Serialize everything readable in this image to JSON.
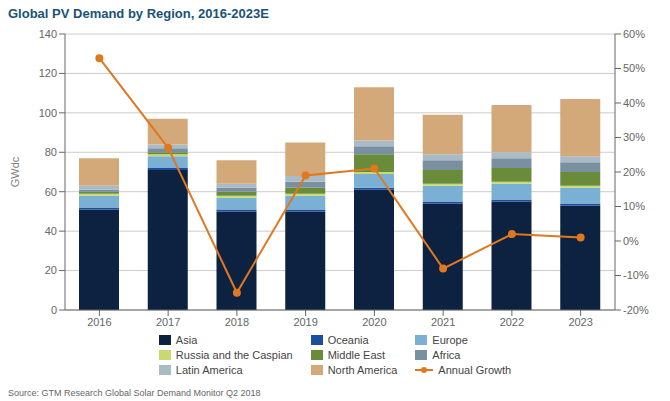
{
  "chart_data": {
    "type": "bar",
    "title": "Global PV Demand by Region, 2016-2023E",
    "ylabel": "GWdc",
    "annotations": [
      "Source: GTM Research Global Solar Demand Monitor Q2 2018"
    ],
    "categories": [
      "2016",
      "2017",
      "2018",
      "2019",
      "2020",
      "2021",
      "2022",
      "2023"
    ],
    "stacked": true,
    "grid": true,
    "legend": "bottom",
    "ylim": [
      0,
      140
    ],
    "yticks": [
      0,
      20,
      40,
      60,
      80,
      100,
      120,
      140
    ],
    "y2lim": [
      -20,
      60
    ],
    "y2ticks": [
      {
        "value": -20,
        "label": "-20%"
      },
      {
        "value": -10,
        "label": "-10%"
      },
      {
        "value": 0,
        "label": "0%"
      },
      {
        "value": 10,
        "label": "10%"
      },
      {
        "value": 20,
        "label": "20%"
      },
      {
        "value": 30,
        "label": "30%"
      },
      {
        "value": 40,
        "label": "40%"
      },
      {
        "value": 50,
        "label": "50%"
      },
      {
        "value": 60,
        "label": "60%"
      }
    ],
    "series": [
      {
        "name": "Asia",
        "type": "bar",
        "color": "#0d2240",
        "values": [
          51,
          71,
          50,
          50,
          61,
          54,
          55,
          53
        ]
      },
      {
        "name": "Oceania",
        "type": "bar",
        "color": "#1a4fa0",
        "values": [
          1,
          1,
          1,
          1,
          1,
          1,
          1,
          1
        ]
      },
      {
        "name": "Europe",
        "type": "bar",
        "color": "#7ab0d4",
        "values": [
          6,
          6,
          6,
          7,
          7,
          8,
          8,
          8
        ]
      },
      {
        "name": "Russia and the Caspian",
        "type": "bar",
        "color": "#c8d96f",
        "values": [
          1,
          1,
          1,
          1,
          1,
          1,
          1,
          1
        ]
      },
      {
        "name": "Middle East",
        "type": "bar",
        "color": "#6a8c3a",
        "values": [
          1,
          1,
          2,
          3,
          9,
          7,
          7,
          7
        ]
      },
      {
        "name": "Africa",
        "type": "bar",
        "color": "#7a8fa0",
        "values": [
          1,
          2,
          2,
          3,
          4,
          5,
          5,
          5
        ]
      },
      {
        "name": "Latin America",
        "type": "bar",
        "color": "#aabbc8",
        "values": [
          2,
          2,
          2,
          3,
          3,
          3,
          3,
          3
        ]
      },
      {
        "name": "North America",
        "type": "bar",
        "color": "#d4a97a",
        "values": [
          14,
          13,
          12,
          17,
          27,
          20,
          24,
          29
        ]
      },
      {
        "name": "Annual Growth",
        "type": "line",
        "axis": "y2",
        "color": "#e07820",
        "marker": "circle",
        "values": [
          53,
          27,
          -15,
          19,
          21,
          -8,
          2,
          1
        ]
      }
    ]
  }
}
